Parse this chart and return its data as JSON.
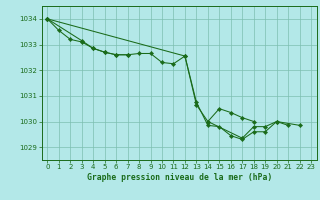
{
  "title": "Graphe pression niveau de la mer (hPa)",
  "bg_color": "#b3e8e8",
  "plot_bg": "#b3e8e8",
  "line_color": "#1a6b1a",
  "grid_color": "#7dbfb0",
  "xlim": [
    -0.5,
    23.5
  ],
  "ylim": [
    1028.5,
    1034.5
  ],
  "yticks": [
    1029,
    1030,
    1031,
    1032,
    1033,
    1034
  ],
  "xticks": [
    0,
    1,
    2,
    3,
    4,
    5,
    6,
    7,
    8,
    9,
    10,
    11,
    12,
    13,
    14,
    15,
    16,
    17,
    18,
    19,
    20,
    21,
    22,
    23
  ],
  "lines": [
    {
      "x": [
        0,
        1,
        2,
        3,
        4,
        5,
        6,
        7,
        8,
        9,
        10,
        11,
        12,
        13,
        14,
        15,
        16,
        17,
        18,
        19,
        20,
        21
      ],
      "y": [
        1034.0,
        1033.55,
        1033.2,
        1033.1,
        1032.85,
        1032.7,
        1032.6,
        1032.6,
        1032.65,
        1032.65,
        1032.3,
        1032.25,
        1032.55,
        1030.75,
        1029.85,
        1029.8,
        1029.45,
        1029.3,
        1029.6,
        1029.6,
        1030.0,
        1029.85
      ]
    },
    {
      "x": [
        0,
        3,
        4,
        5,
        6,
        7
      ],
      "y": [
        1034.0,
        1033.15,
        1032.85,
        1032.7,
        1032.6,
        1032.6
      ]
    },
    {
      "x": [
        0,
        12,
        13,
        14,
        17,
        18,
        19,
        20,
        22
      ],
      "y": [
        1034.0,
        1032.55,
        1030.65,
        1030.0,
        1029.35,
        1029.8,
        1029.8,
        1030.0,
        1029.85
      ]
    },
    {
      "x": [
        14,
        15,
        16,
        17,
        18
      ],
      "y": [
        1030.0,
        1030.5,
        1030.35,
        1030.15,
        1030.0
      ]
    }
  ]
}
